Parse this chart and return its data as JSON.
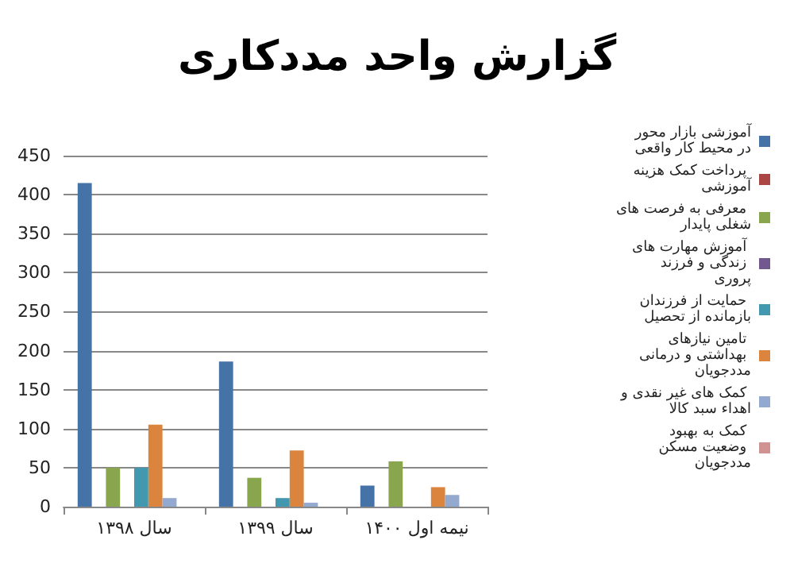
{
  "chart_data": {
    "type": "bar",
    "title": "گزارش واحد مددکاری",
    "categories": [
      "سال ۱۳۹۸",
      "سال ۱۳۹۹",
      "نیمه اول ۱۴۰۰"
    ],
    "series": [
      {
        "name": "آموزشی بازار محور در محیط کار واقعی",
        "color": "#4572a7",
        "values": [
          415,
          186,
          27
        ]
      },
      {
        "name": "پرداخت کمک هزینه آموزشی",
        "color": "#aa4643",
        "values": [
          0,
          0,
          0
        ]
      },
      {
        "name": "معرفی به فرصت های شغلی پایدار",
        "color": "#89a54e",
        "values": [
          50,
          37,
          58
        ]
      },
      {
        "name": "آموزش مهارت های زندگی و فرزند پروری",
        "color": "#71588f",
        "values": [
          0,
          0,
          0
        ]
      },
      {
        "name": "حمایت از فرزندان بازمانده از تحصیل",
        "color": "#4198af",
        "values": [
          50,
          11,
          0
        ]
      },
      {
        "name": "تامین نیازهای بهداشتی و درمانی مددجویان",
        "color": "#db843d",
        "values": [
          105,
          72,
          25
        ]
      },
      {
        "name": "کمک های غیر نقدی و اهداء سبد کالا",
        "color": "#93a9cf",
        "values": [
          11,
          5,
          15
        ]
      },
      {
        "name": "کمک به بهبود وضعیت مسکن مددجویان",
        "color": "#d19392",
        "values": [
          0,
          0,
          0
        ]
      }
    ],
    "ylim": [
      0,
      450
    ],
    "yticks": [
      0,
      50,
      100,
      150,
      200,
      250,
      300,
      350,
      400,
      450
    ],
    "grid": "y",
    "legend": "right"
  }
}
